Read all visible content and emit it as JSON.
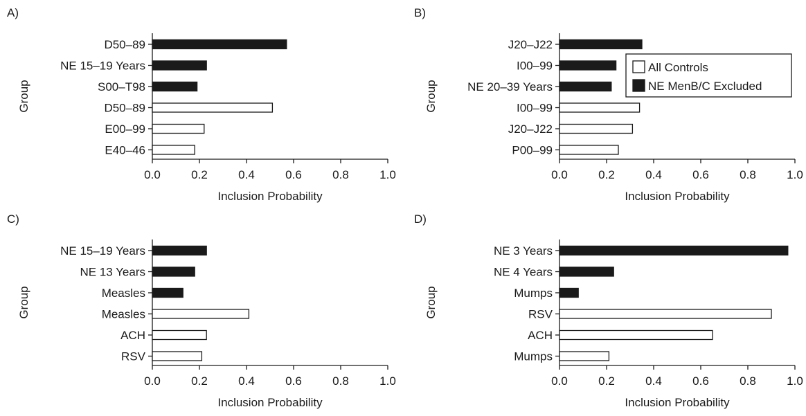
{
  "colors": {
    "excluded_fill": "#1a1a1a",
    "controls_fill": "#ffffff",
    "stroke": "#1a1a1a"
  },
  "chart_data": [
    {
      "panel": "A)",
      "type": "bar",
      "orientation": "horizontal",
      "xlabel": "Inclusion Probability",
      "ylabel": "Group",
      "xlim": [
        0,
        1.0
      ],
      "xticks": [
        "0.0",
        "0.2",
        "0.4",
        "0.6",
        "0.8",
        "1.0"
      ],
      "bars": [
        {
          "label": "D50–89",
          "value": 0.57,
          "series": "NE MenB/C Excluded"
        },
        {
          "label": "NE 15–19 Years",
          "value": 0.23,
          "series": "NE MenB/C Excluded"
        },
        {
          "label": "S00–T98",
          "value": 0.19,
          "series": "NE MenB/C Excluded"
        },
        {
          "label": "D50–89",
          "value": 0.51,
          "series": "All Controls"
        },
        {
          "label": "E00–99",
          "value": 0.22,
          "series": "All Controls"
        },
        {
          "label": "E40–46",
          "value": 0.18,
          "series": "All Controls"
        }
      ]
    },
    {
      "panel": "B)",
      "type": "bar",
      "orientation": "horizontal",
      "xlabel": "Inclusion Probability",
      "ylabel": "Group",
      "xlim": [
        0,
        1.0
      ],
      "xticks": [
        "0.0",
        "0.2",
        "0.4",
        "0.6",
        "0.8",
        "1.0"
      ],
      "legend": {
        "placement": "top-right",
        "entries": [
          {
            "label": "All Controls",
            "series": "All Controls"
          },
          {
            "label": "NE MenB/C Excluded",
            "series": "NE MenB/C Excluded"
          }
        ]
      },
      "bars": [
        {
          "label": "J20–J22",
          "value": 0.35,
          "series": "NE MenB/C Excluded"
        },
        {
          "label": "I00–99",
          "value": 0.24,
          "series": "NE MenB/C Excluded"
        },
        {
          "label": "NE 20–39 Years",
          "value": 0.22,
          "series": "NE MenB/C Excluded"
        },
        {
          "label": "I00–99",
          "value": 0.34,
          "series": "All Controls"
        },
        {
          "label": "J20–J22",
          "value": 0.31,
          "series": "All Controls"
        },
        {
          "label": "P00–99",
          "value": 0.25,
          "series": "All Controls"
        }
      ]
    },
    {
      "panel": "C)",
      "type": "bar",
      "orientation": "horizontal",
      "xlabel": "Inclusion Probability",
      "ylabel": "Group",
      "xlim": [
        0,
        1.0
      ],
      "xticks": [
        "0.0",
        "0.2",
        "0.4",
        "0.6",
        "0.8",
        "1.0"
      ],
      "bars": [
        {
          "label": "NE 15–19 Years",
          "value": 0.23,
          "series": "NE MenB/C Excluded"
        },
        {
          "label": "NE 13 Years",
          "value": 0.18,
          "series": "NE MenB/C Excluded"
        },
        {
          "label": "Measles",
          "value": 0.13,
          "series": "NE MenB/C Excluded"
        },
        {
          "label": "Measles",
          "value": 0.41,
          "series": "All Controls"
        },
        {
          "label": "ACH",
          "value": 0.23,
          "series": "All Controls"
        },
        {
          "label": "RSV",
          "value": 0.21,
          "series": "All Controls"
        }
      ]
    },
    {
      "panel": "D)",
      "type": "bar",
      "orientation": "horizontal",
      "xlabel": "Inclusion Probability",
      "ylabel": "Group",
      "xlim": [
        0,
        1.0
      ],
      "xticks": [
        "0.0",
        "0.2",
        "0.4",
        "0.6",
        "0.8",
        "1.0"
      ],
      "bars": [
        {
          "label": "NE 3 Years",
          "value": 0.97,
          "series": "NE MenB/C Excluded"
        },
        {
          "label": "NE 4 Years",
          "value": 0.23,
          "series": "NE MenB/C Excluded"
        },
        {
          "label": "Mumps",
          "value": 0.08,
          "series": "NE MenB/C Excluded"
        },
        {
          "label": "RSV",
          "value": 0.9,
          "series": "All Controls"
        },
        {
          "label": "ACH",
          "value": 0.65,
          "series": "All Controls"
        },
        {
          "label": "Mumps",
          "value": 0.21,
          "series": "All Controls"
        }
      ]
    }
  ]
}
